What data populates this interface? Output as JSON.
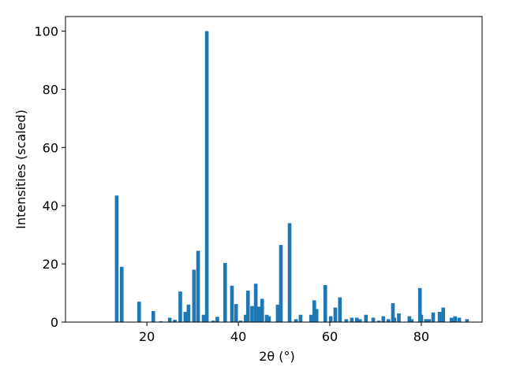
{
  "chart_data": {
    "type": "bar",
    "xlabel": "2θ (°)",
    "ylabel": "Intensities (scaled)",
    "x": [
      13.4,
      14.5,
      18.3,
      21.4,
      23.1,
      25.0,
      26.1,
      27.3,
      28.4,
      29.1,
      30.3,
      31.2,
      32.4,
      33.1,
      34.5,
      35.4,
      37.1,
      38.6,
      39.5,
      40.5,
      41.6,
      42.1,
      43.0,
      43.8,
      44.5,
      45.2,
      46.2,
      46.7,
      48.6,
      49.3,
      51.2,
      52.6,
      53.6,
      55.9,
      56.6,
      57.1,
      59.0,
      60.2,
      61.2,
      62.2,
      63.6,
      64.8,
      65.9,
      66.6,
      67.9,
      69.5,
      70.7,
      71.7,
      72.8,
      73.8,
      74.1,
      75.1,
      77.4,
      77.9,
      79.7,
      80.0,
      81.0,
      81.7,
      82.6,
      84.0,
      84.8,
      86.6,
      87.4,
      88.3,
      90.0
    ],
    "values": [
      43.5,
      19,
      7,
      3.8,
      0.3,
      1.5,
      0.8,
      10.5,
      3.5,
      6,
      18,
      24.5,
      2.5,
      100,
      0.5,
      1.8,
      20.3,
      12.5,
      6.2,
      0.5,
      2.5,
      10.8,
      5.5,
      13.2,
      5.3,
      8,
      2.5,
      2,
      6,
      26.5,
      34,
      1,
      2.5,
      2.5,
      7.5,
      4.5,
      12.7,
      2,
      5,
      8.5,
      1,
      1.5,
      1.5,
      1,
      2.5,
      1.5,
      0.5,
      2,
      1,
      6.5,
      1.5,
      3,
      2,
      1,
      11.7,
      2.5,
      1,
      1,
      3.3,
      3.5,
      5,
      1.5,
      2,
      1.5,
      1
    ],
    "color": "#1f77b4",
    "xlim": [
      2.2,
      93.3
    ],
    "xticks": [
      20,
      40,
      60,
      80
    ],
    "ylim": [
      0,
      105
    ],
    "yticks": [
      0,
      20,
      40,
      60,
      80,
      100
    ],
    "grid": false
  }
}
